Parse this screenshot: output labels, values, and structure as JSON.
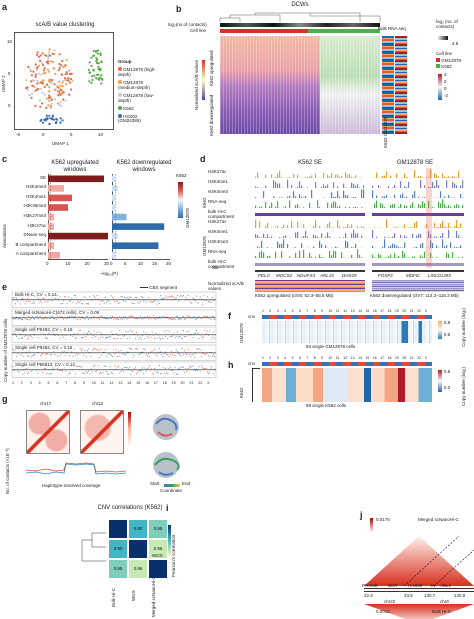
{
  "panels": {
    "a": {
      "label": "a",
      "title": "scA/B value clustering",
      "xlabel": "UMAP 1",
      "ylabel": "UMAP 2",
      "xticks": [
        "-5",
        "0",
        "5",
        "10"
      ],
      "yticks": [
        "10",
        "5",
        "0"
      ],
      "legend_title": "Group",
      "legend": [
        {
          "text": "GM12878 (high-depth)",
          "color": "#e06b4a"
        },
        {
          "text": "GM12878 (medium-depth)",
          "color": "#f0a050"
        },
        {
          "text": "GM12878 (low-depth)",
          "color": "#c8c8c8"
        },
        {
          "text": "K562",
          "color": "#5aa84c"
        },
        {
          "text": "HG002 (GM24385)",
          "color": "#3b6fb6"
        }
      ]
    },
    "b": {
      "label": "b",
      "title": "DCWs",
      "row1": "log₂(no.of contacts)",
      "row2": "Cell line",
      "bulk": "Bulk RNA seq",
      "left_top": "K562 upregulated",
      "left_bottom": "K562 downregulated",
      "ylabel": "Normalized scA/B values",
      "ticks": [
        "2",
        "0",
        "-2"
      ],
      "legend_contacts": "log₂ (no. of contacts)",
      "contact_ticks": [
        "4.8",
        "4.4"
      ],
      "legend_cell": "Cell line",
      "cell_items": [
        "GM12878",
        "K562"
      ],
      "bottom": "K562 GM12878",
      "bulk_ticks": [
        "4",
        "2",
        "0",
        "-2"
      ]
    },
    "c": {
      "label": "c",
      "title_up": "K562 upregulated windows",
      "title_down": "K562 downregulated windows",
      "ylabel": "Annotations",
      "xlabel": "–log₁₀(P)",
      "categories": [
        "SE",
        "H3K4me3",
        "H3K4me1",
        "H3K36me3",
        "H3K27me3",
        "H3K27ac",
        "DNase-seq",
        "B compartment",
        "A compartment"
      ],
      "up_values": [
        28,
        8,
        12,
        10,
        3,
        3,
        30,
        3,
        6
      ],
      "down_values": [
        1,
        2,
        1,
        1,
        5,
        18,
        2,
        16,
        1
      ],
      "up_ticks": [
        "0",
        "10",
        "20",
        "30"
      ],
      "down_ticks": [
        "0",
        "5",
        "10",
        "15",
        "20"
      ],
      "legend_title": "K562",
      "legend_bottom": "GM12878"
    },
    "d": {
      "label": "d",
      "title_left": "K562 SE",
      "title_right": "GM12878 SE",
      "tracks": [
        "H3K27ac",
        "H3K4me1",
        "H3K4me3",
        "RNA-seq",
        "bulk Hi-C compartment"
      ],
      "group1": "K562",
      "group2": "GM12878",
      "genes_left": [
        "PELO",
        "MOCS2",
        "NDUFS4",
        "ARL15",
        "DHX29"
      ],
      "genes_right": [
        "FOXP2",
        "MDFIC",
        "LINC01393"
      ],
      "cap_left": "K562 upregulated (chr5: 52.3–55.5 Mb)",
      "cap_right": "K562 downregulated (chr7: 114.3–115.3 Mb)",
      "ylabel": "Normalized scA/B values",
      "se": "SE"
    },
    "e": {
      "label": "e",
      "legend": "CBS segment",
      "ylabel": "Copy number of GM12878 cells",
      "rows": [
        {
          "text": "Bulk Hi-C, CV = 0.14"
        },
        {
          "text": "Merged scNanoHi-C(672 cells), CV = 0.09"
        },
        {
          "text": "Single cell P9483, CV = 0.15"
        },
        {
          "text": "Single cell P9482, CV = 0.18"
        },
        {
          "text": "Single cell P96813, CV = 0.14"
        }
      ],
      "chroms": [
        "1",
        "2",
        "3",
        "4",
        "5",
        "6",
        "7",
        "8",
        "9",
        "10",
        "11",
        "12",
        "13",
        "14",
        "15",
        "16",
        "17",
        "18",
        "19",
        "20",
        "21",
        "22",
        "X"
      ]
    },
    "f": {
      "label": "f",
      "row": "GM12878",
      "cap": "93 single GM12878 cells",
      "cnv": "cnv",
      "chroms": [
        "1",
        "2",
        "3",
        "4",
        "5",
        "6",
        "7",
        "8",
        "9",
        "10",
        "11",
        "12",
        "13",
        "14",
        "15",
        "16",
        "17",
        "18",
        "19",
        "20",
        "21",
        "22",
        "X"
      ],
      "legend": "Copy number (log₂)",
      "ticks": [
        "5.8",
        "5.6"
      ]
    },
    "g": {
      "label": "g",
      "chr_a": "chr17",
      "chr_b": "chr12",
      "ylabel": "No. of contacts (×10⁻³)",
      "xlabel": "Haplotype-resolved coverage",
      "start": "Start",
      "end": "End",
      "coord": "Coordinate"
    },
    "h": {
      "label": "h",
      "row": "K562",
      "cap": "88 single K562 cells",
      "cnv": "cnv",
      "chroms": [
        "1",
        "2",
        "3",
        "4",
        "5",
        "6",
        "7",
        "8",
        "9",
        "10",
        "11",
        "12",
        "13",
        "14",
        "15",
        "16",
        "17",
        "18",
        "19",
        "20",
        "21",
        "22",
        "X"
      ],
      "legend": "Copy number (log₂)",
      "ticks": [
        "5.8",
        "5.2"
      ]
    },
    "i": {
      "label": "i",
      "title": "CNV correlations (K562)",
      "labels": [
        "Bulk Hi-C",
        "WGS",
        "Merged scNanoHi-C"
      ],
      "matrix": [
        [
          "",
          "0.90",
          "0.95"
        ],
        [
          "0.90",
          "",
          "0.96"
        ],
        [
          "0.95",
          "0.96",
          ""
        ]
      ],
      "legend": "Pearson's correlation",
      "ticks": [
        "1.0",
        "0.5"
      ]
    },
    "j": {
      "label": "j",
      "top": "Merged scNanoHi-C",
      "bottom": "Bulk Hi-C",
      "genes": [
        "PRAME",
        "BCR",
        "ABL1",
        "RAB36"
      ],
      "chr_left": "chr22",
      "chr_right": "chr9",
      "tick_left": "22.3",
      "tick_mid": "23.5",
      "tick_r1": "130.7",
      "tick_r2": "130.9",
      "legend_top": "0.0175",
      "legend_bottom": "0.0012",
      "ylabel": "No.of contacts",
      "sv": "SV"
    }
  }
}
